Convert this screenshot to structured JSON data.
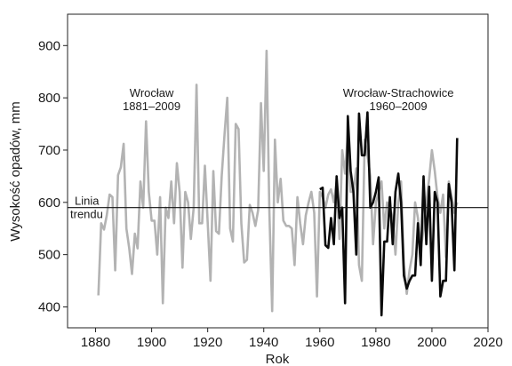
{
  "chart_data": {
    "type": "line",
    "xlabel": "Rok",
    "ylabel": "Wysokość opadów, mm",
    "xlim": [
      1870,
      2020
    ],
    "ylim": [
      360,
      960
    ],
    "x_ticks": [
      1880,
      1900,
      1920,
      1940,
      1960,
      1980,
      2000,
      2020
    ],
    "y_ticks": [
      400,
      500,
      600,
      700,
      800,
      900
    ],
    "grid": false,
    "annotations": [
      {
        "lines": [
          "Wrocław",
          "1881–2009"
        ],
        "anchor_x": 1900,
        "anchor_y": 785
      },
      {
        "lines": [
          "Wrocław-Strachowice",
          "1960–2009"
        ],
        "anchor_x": 1988,
        "anchor_y": 785
      }
    ],
    "trend": {
      "label_lines": [
        "Linia",
        "trendu"
      ],
      "value": 590
    },
    "series": [
      {
        "name": "Wrocław 1881–2009",
        "color": "#b3b3b3",
        "x": [
          1881,
          1882,
          1883,
          1884,
          1885,
          1886,
          1887,
          1888,
          1889,
          1890,
          1891,
          1892,
          1893,
          1894,
          1895,
          1896,
          1897,
          1898,
          1899,
          1900,
          1901,
          1902,
          1903,
          1904,
          1905,
          1906,
          1907,
          1908,
          1909,
          1910,
          1911,
          1912,
          1913,
          1914,
          1915,
          1916,
          1917,
          1918,
          1919,
          1920,
          1921,
          1922,
          1923,
          1924,
          1925,
          1926,
          1927,
          1928,
          1929,
          1930,
          1931,
          1932,
          1933,
          1934,
          1935,
          1936,
          1937,
          1938,
          1939,
          1940,
          1941,
          1942,
          1943,
          1944,
          1945,
          1946,
          1947,
          1948,
          1949,
          1950,
          1951,
          1952,
          1953,
          1954,
          1955,
          1956,
          1957,
          1958,
          1959,
          1960,
          1961,
          1962,
          1963,
          1964,
          1965,
          1966,
          1967,
          1968,
          1969,
          1970,
          1971,
          1972,
          1973,
          1974,
          1975,
          1976,
          1977,
          1978,
          1979,
          1980,
          1981,
          1982,
          1983,
          1984,
          1985,
          1986,
          1987,
          1988,
          1989,
          1990,
          1991,
          1992,
          1993,
          1994,
          1995,
          1996,
          1997,
          1998,
          1999,
          2000,
          2001,
          2002,
          2003,
          2004,
          2005,
          2006,
          2007,
          2008,
          2009
        ],
        "y": [
          422,
          560,
          548,
          575,
          615,
          610,
          470,
          652,
          667,
          712,
          550,
          512,
          463,
          540,
          512,
          640,
          590,
          755,
          620,
          565,
          565,
          500,
          610,
          407,
          590,
          570,
          640,
          560,
          675,
          620,
          475,
          620,
          600,
          530,
          590,
          825,
          560,
          560,
          670,
          560,
          450,
          660,
          545,
          540,
          650,
          730,
          800,
          550,
          525,
          750,
          740,
          560,
          485,
          490,
          595,
          580,
          555,
          585,
          790,
          660,
          890,
          585,
          392,
          720,
          600,
          645,
          565,
          555,
          555,
          550,
          480,
          610,
          560,
          520,
          575,
          600,
          620,
          580,
          420,
          620,
          610,
          590,
          615,
          625,
          600,
          640,
          530,
          700,
          655,
          730,
          620,
          620,
          665,
          480,
          450,
          720,
          690,
          650,
          520,
          600,
          620,
          640,
          550,
          600,
          590,
          570,
          500,
          600,
          640,
          480,
          425,
          470,
          500,
          600,
          570,
          510,
          550,
          600,
          645,
          700,
          660,
          610,
          580,
          615,
          495,
          640,
          610,
          580,
          600
        ]
      },
      {
        "name": "Wrocław-Strachowice 1960–2009",
        "color": "#0a0a0a",
        "x": [
          1960,
          1961,
          1962,
          1963,
          1964,
          1965,
          1966,
          1967,
          1968,
          1969,
          1970,
          1971,
          1972,
          1973,
          1974,
          1975,
          1976,
          1977,
          1978,
          1979,
          1980,
          1981,
          1982,
          1983,
          1984,
          1985,
          1986,
          1987,
          1988,
          1989,
          1990,
          1991,
          1992,
          1993,
          1994,
          1995,
          1996,
          1997,
          1998,
          1999,
          2000,
          2001,
          2002,
          2003,
          2004,
          2005,
          2006,
          2007,
          2008,
          2009
        ],
        "y": [
          625,
          628,
          518,
          513,
          570,
          520,
          650,
          570,
          590,
          407,
          765,
          660,
          620,
          500,
          770,
          690,
          690,
          772,
          590,
          600,
          620,
          648,
          384,
          525,
          525,
          610,
          520,
          620,
          655,
          600,
          460,
          435,
          450,
          460,
          460,
          560,
          480,
          650,
          520,
          630,
          450,
          620,
          600,
          420,
          450,
          450,
          635,
          600,
          470,
          723
        ]
      }
    ]
  }
}
